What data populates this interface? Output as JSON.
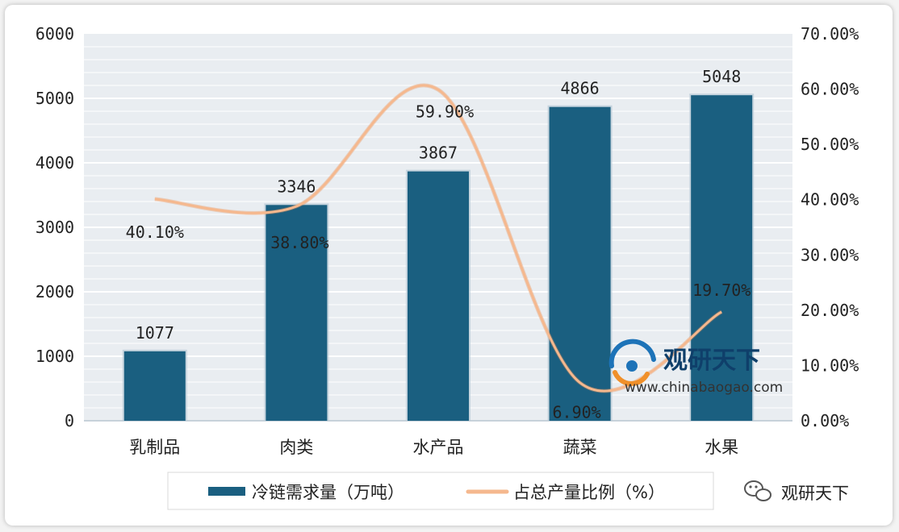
{
  "chart_data": {
    "type": "bar",
    "categories": [
      "乳制品",
      "肉类",
      "水产品",
      "蔬菜",
      "水果"
    ],
    "series": [
      {
        "name": "冷链需求量（万吨）",
        "type": "bar",
        "axis": "left",
        "values": [
          1077,
          3346,
          3867,
          4866,
          5048
        ],
        "labels": [
          "1077",
          "3346",
          "3867",
          "4866",
          "5048"
        ],
        "color": "#1a5f80"
      },
      {
        "name": "占总产量比例（%）",
        "type": "line",
        "axis": "right",
        "values": [
          40.1,
          38.8,
          59.9,
          6.9,
          19.7
        ],
        "labels": [
          "40.10%",
          "38.80%",
          "59.90%",
          "6.90%",
          "19.70%"
        ],
        "color": "#f5b88e"
      }
    ],
    "y_left": {
      "ylim": [
        0,
        6000
      ],
      "ticks": [
        "0",
        "1000",
        "2000",
        "3000",
        "4000",
        "5000",
        "6000"
      ]
    },
    "y_right": {
      "ylim": [
        0,
        70
      ],
      "ticks": [
        "0.00%",
        "10.00%",
        "20.00%",
        "30.00%",
        "40.00%",
        "50.00%",
        "60.00%",
        "70.00%"
      ]
    },
    "grid": true,
    "legend_position": "bottom"
  },
  "watermark": {
    "brand": "观研天下",
    "url": "www.chinabaogao.com"
  },
  "footer_brand": "观研天下"
}
